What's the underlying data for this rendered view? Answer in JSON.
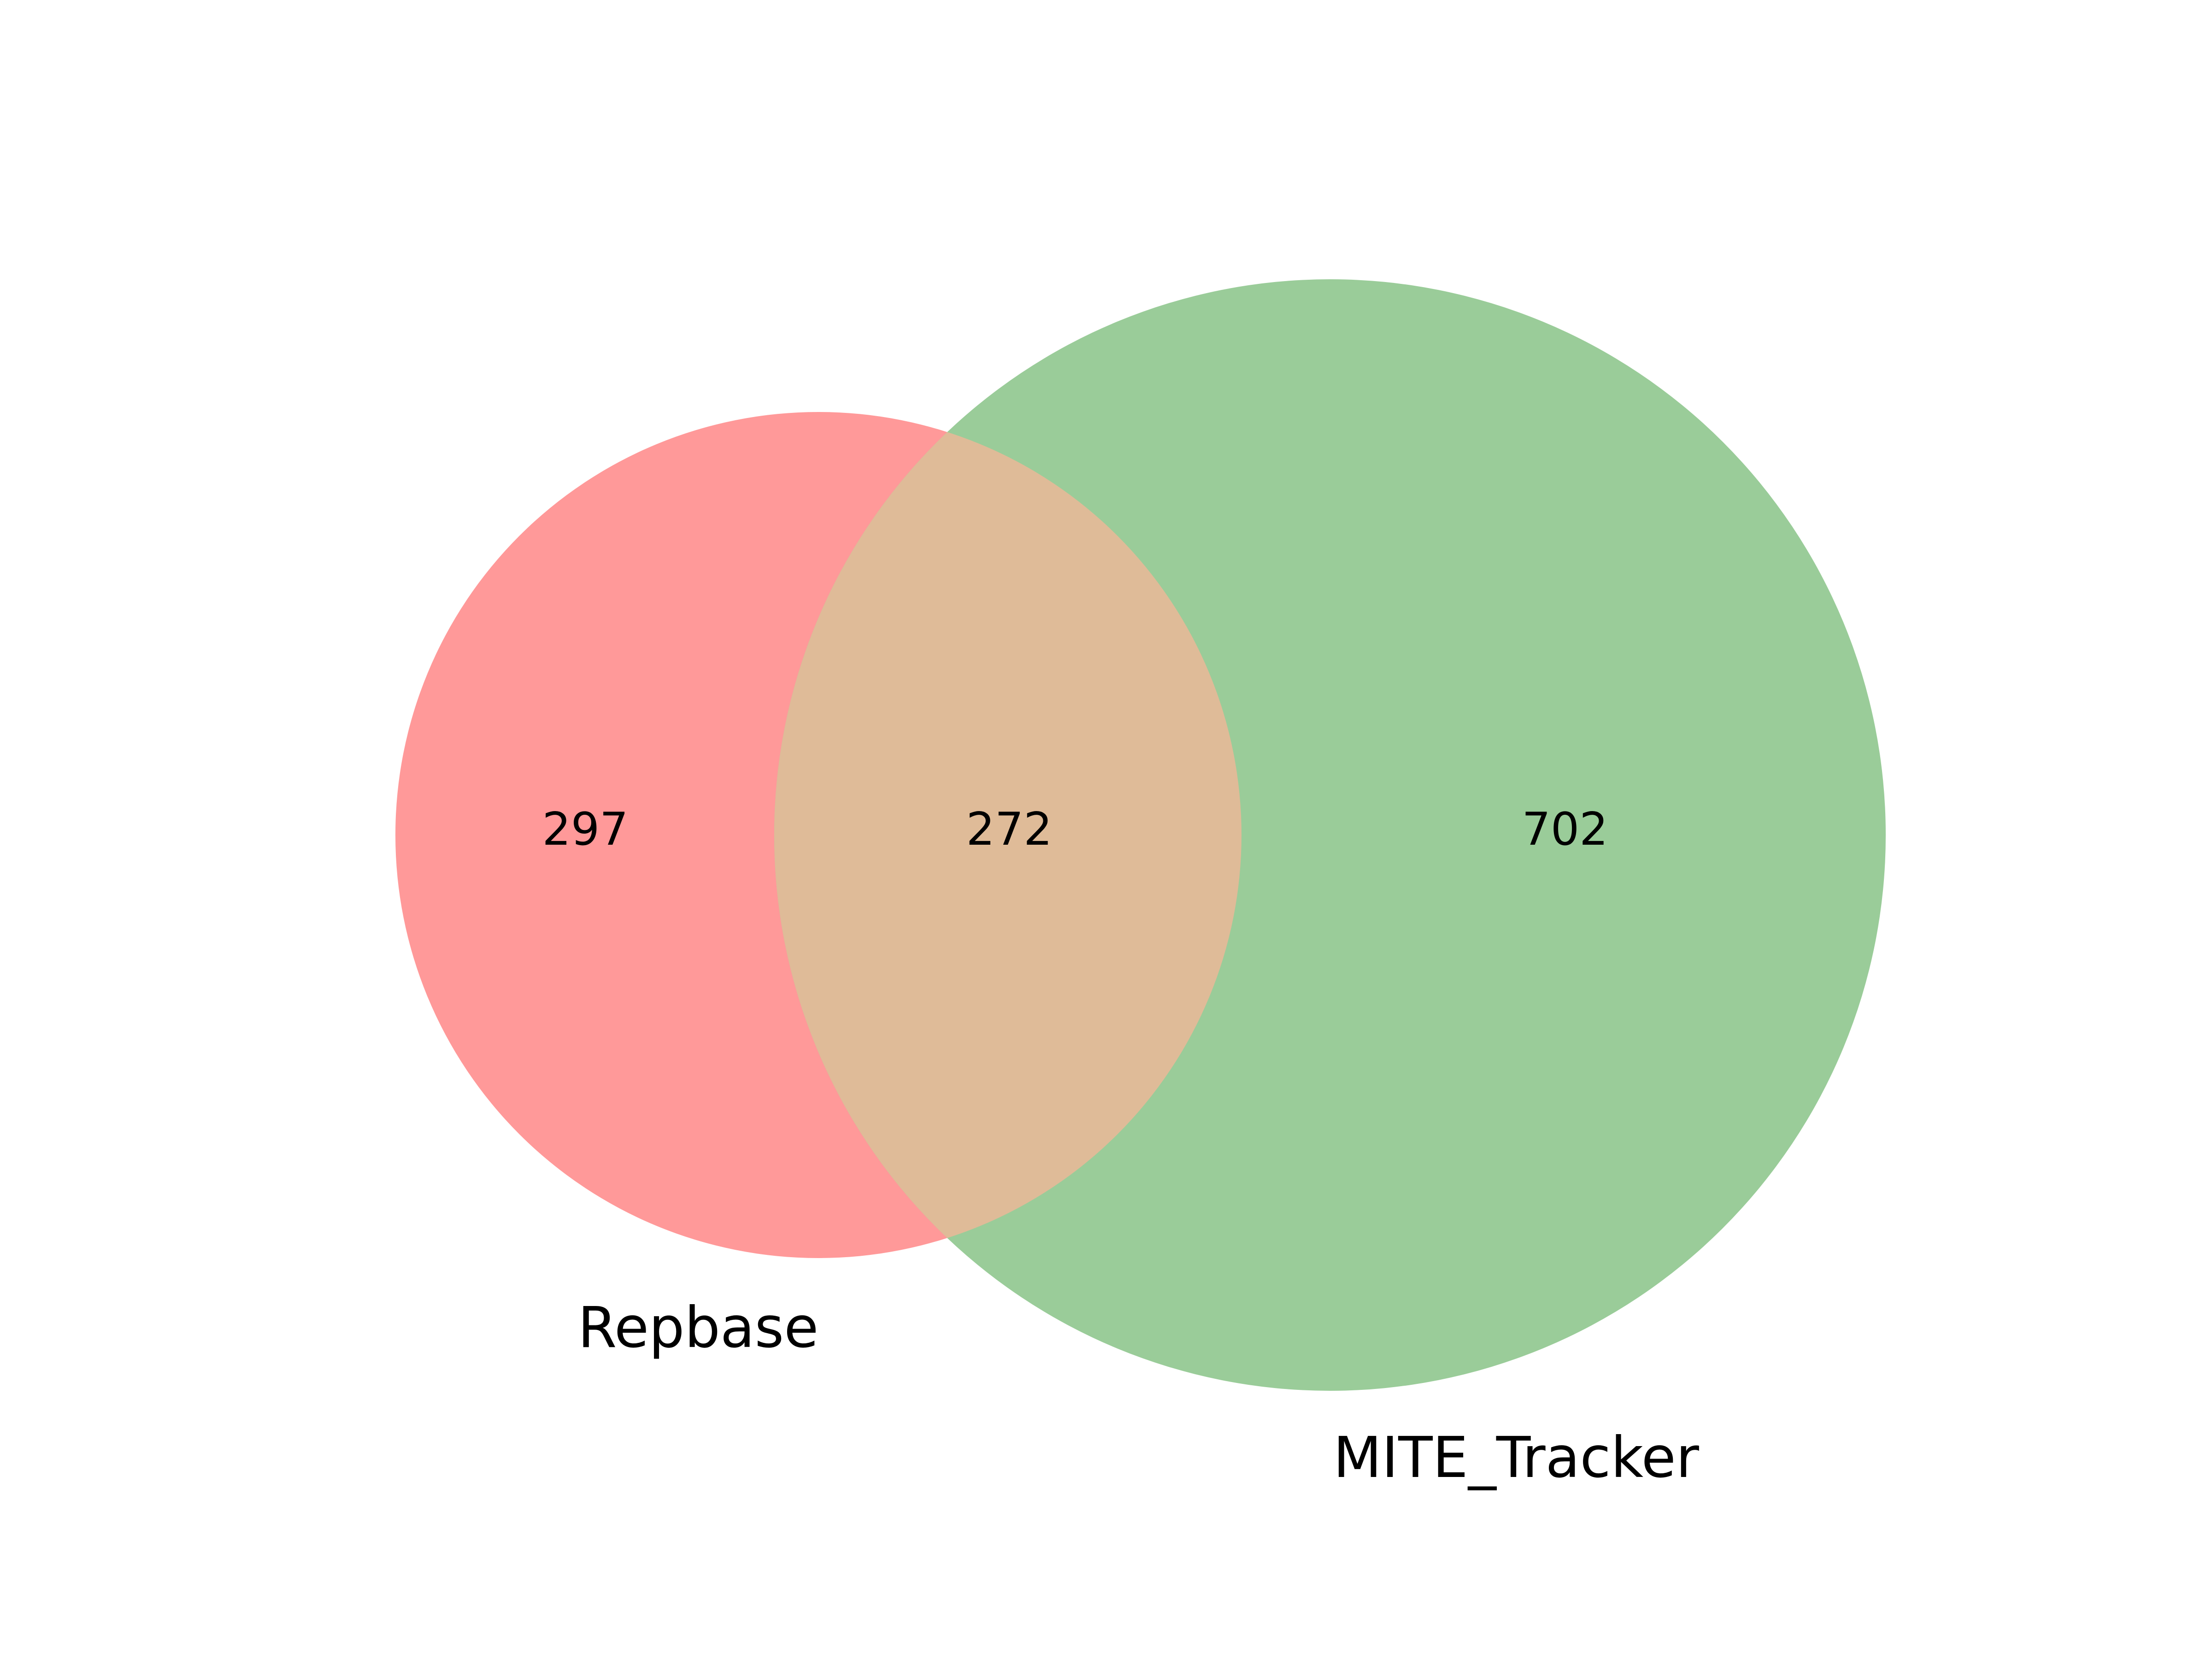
{
  "diagram": {
    "type": "venn2",
    "sets": [
      {
        "name": "Repbase",
        "only_count": "297",
        "color": "#ff9999"
      },
      {
        "name": "MITE_Tracker",
        "only_count": "702",
        "color": "#9acc99"
      }
    ],
    "intersection": {
      "count": "272",
      "color": "#dfbb98"
    }
  }
}
